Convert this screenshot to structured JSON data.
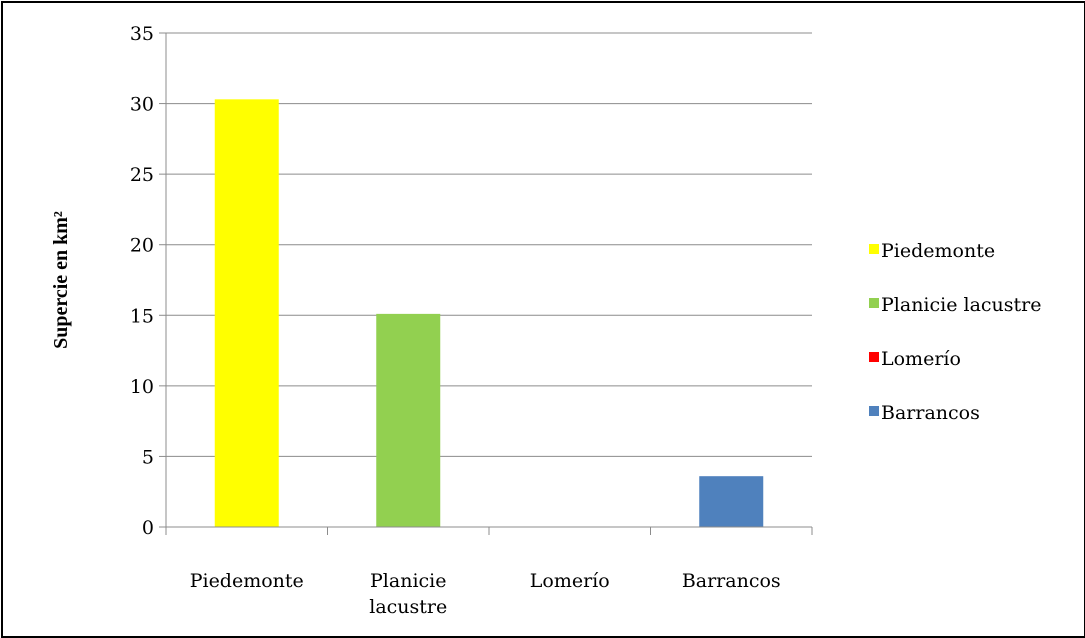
{
  "chart_data": {
    "type": "bar",
    "categories": [
      "Piedemonte",
      "Planicie lacustre",
      "Lomerío",
      "Barrancos"
    ],
    "category_lines": [
      [
        "Piedemonte"
      ],
      [
        "Planicie",
        "lacustre"
      ],
      [
        "Lomerío"
      ],
      [
        "Barrancos"
      ]
    ],
    "values": [
      30.3,
      15.1,
      0,
      3.6
    ],
    "colors": [
      "#ffff00",
      "#92d050",
      "#ff0000",
      "#4f81bd"
    ],
    "ylabel": "Supercie en km²",
    "xlabel": "",
    "ylim": [
      0,
      35
    ],
    "yticks": [
      0,
      5,
      10,
      15,
      20,
      25,
      30,
      35
    ],
    "grid": true,
    "legend_position": "right",
    "legend": [
      {
        "label": "Piedemonte",
        "color": "#ffff00"
      },
      {
        "label": "Planicie lacustre",
        "color": "#92d050"
      },
      {
        "label": "Lomerío",
        "color": "#ff0000"
      },
      {
        "label": "Barrancos",
        "color": "#4f81bd"
      }
    ]
  }
}
